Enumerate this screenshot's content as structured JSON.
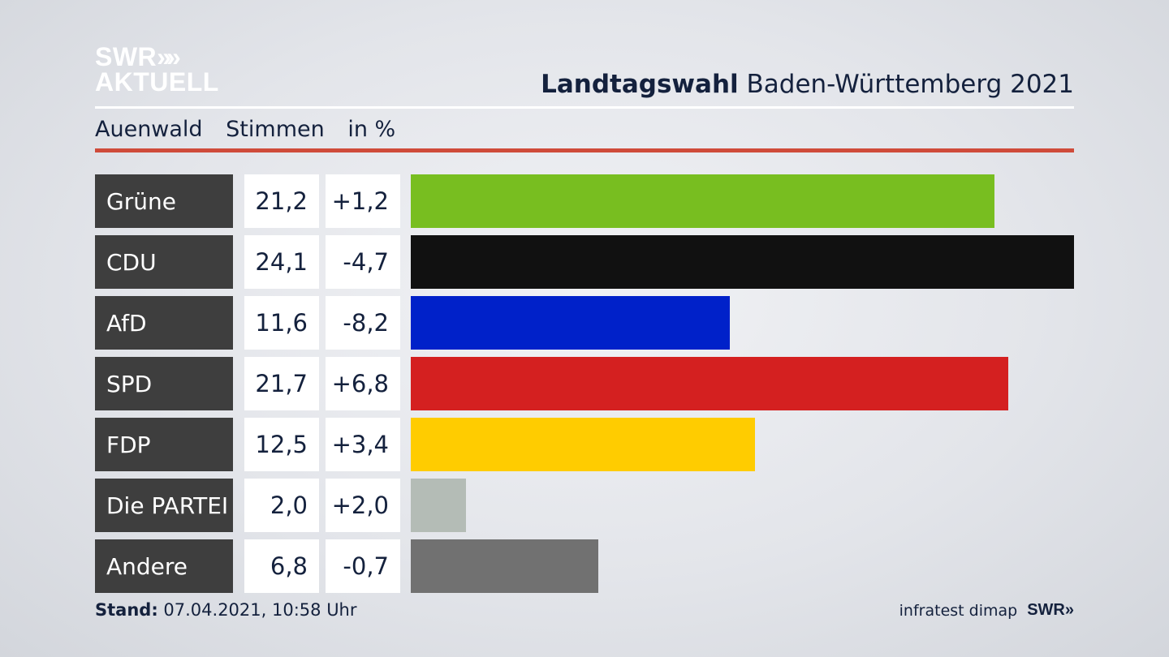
{
  "brand": {
    "line1": "SWR",
    "chevrons": "»",
    "line2": "AKTUELL"
  },
  "header": {
    "title_bold": "Landtagswahl",
    "title_rest": "Baden-Württemberg 2021"
  },
  "subheader": {
    "place": "Auenwald",
    "metric": "Stimmen",
    "unit": "in %"
  },
  "chart_data": {
    "type": "bar",
    "orientation": "horizontal",
    "categories": [
      "Grüne",
      "CDU",
      "AfD",
      "SPD",
      "FDP",
      "Die PARTEI",
      "Andere"
    ],
    "series": [
      {
        "values": [
          21.2,
          24.1,
          11.6,
          21.7,
          12.5,
          2.0,
          6.8
        ]
      }
    ],
    "changes": [
      1.2,
      -4.7,
      -8.2,
      6.8,
      3.4,
      2.0,
      -0.7
    ],
    "value_labels": [
      "21,2",
      "24,1",
      "11,6",
      "21,7",
      "12,5",
      "2,0",
      "6,8"
    ],
    "change_labels": [
      "+1,2",
      "-4,7",
      "-8,2",
      "+6,8",
      "+3,4",
      "+2,0",
      "-0,7"
    ],
    "colors": [
      "#78be20",
      "#111111",
      "#0021c9",
      "#d42020",
      "#ffcc00",
      "#b4bcb6",
      "#717171"
    ],
    "xlim": [
      0,
      24.1
    ]
  },
  "footer": {
    "stand_label": "Stand:",
    "stand_value": "07.04.2021, 10:58 Uhr",
    "source": "infratest dimap",
    "logo": "SWR»"
  }
}
